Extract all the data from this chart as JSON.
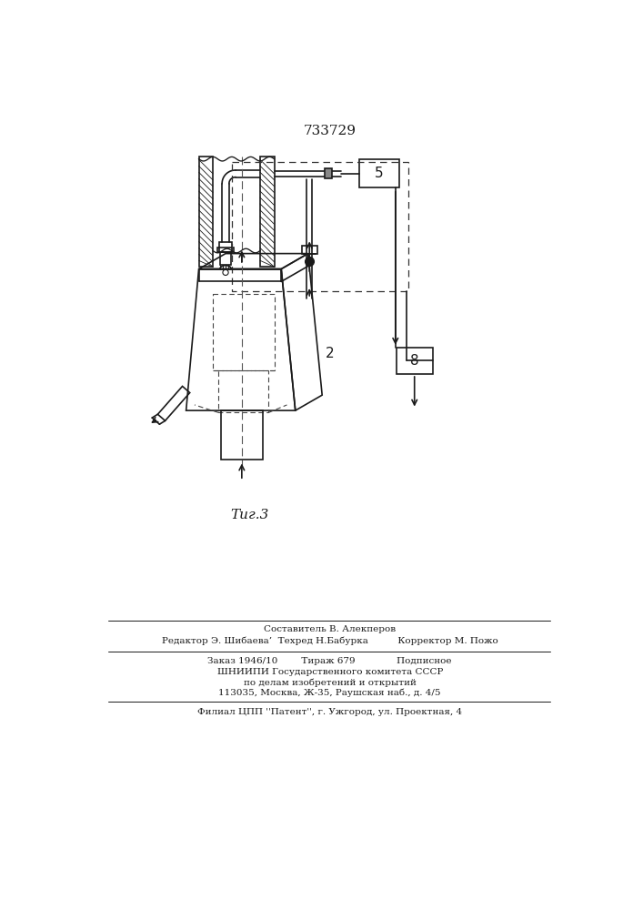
{
  "patent_number": "733729",
  "fig_label": "Τиг.3",
  "label_5": "5",
  "label_2": "2",
  "label_8": "8",
  "bg_color": "#ffffff",
  "line_color": "#1a1a1a",
  "line_width": 1.2,
  "text_color": "#1a1a1a",
  "footer_lines": [
    "Составитель В. Алекперов",
    "Редактор Э. Шибаева’  Техред Н.Бабурка          Корректор М. Пожо",
    "Заказ 1946/10        Тираж 679              Подписное",
    "ШНИИПИ Государственного комитета СССР",
    "по делам изобретений и открытий",
    "113035, Москва, Ж-35, Раушская наб., д. 4/5",
    "Филиал ЦПП ''Патент'', г. Ужгород, ул. Проектная, 4"
  ]
}
